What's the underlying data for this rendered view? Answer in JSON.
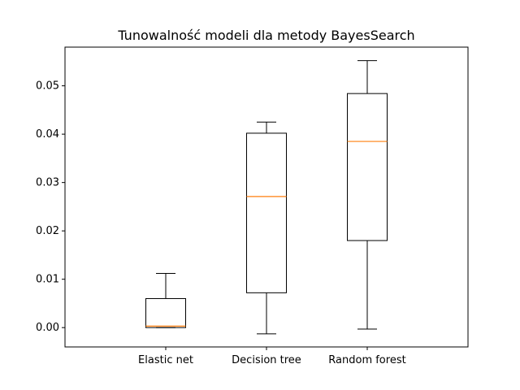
{
  "chart_data": {
    "type": "box",
    "title": "Tunowalność modeli dla metody BayesSearch",
    "xlabel": "",
    "ylabel": "",
    "categories": [
      "Elastic net",
      "Decision tree",
      "Random forest"
    ],
    "boxes": [
      {
        "name": "Elastic net",
        "whisker_low": 0.0,
        "q1": 0.0,
        "median": 0.0003,
        "q3": 0.006,
        "whisker_high": 0.0112
      },
      {
        "name": "Decision tree",
        "whisker_low": -0.0013,
        "q1": 0.0072,
        "median": 0.0271,
        "q3": 0.0402,
        "whisker_high": 0.0425
      },
      {
        "name": "Random forest",
        "whisker_low": -0.0003,
        "q1": 0.018,
        "median": 0.0385,
        "q3": 0.0484,
        "whisker_high": 0.0552
      }
    ],
    "ylim": [
      -0.004,
      0.058
    ],
    "yticks": [
      0.0,
      0.01,
      0.02,
      0.03,
      0.04,
      0.05
    ],
    "ytick_labels": [
      "0.00",
      "0.01",
      "0.02",
      "0.03",
      "0.04",
      "0.05"
    ],
    "grid": false,
    "colors": {
      "box": "#000000",
      "median": "#ff7f0e",
      "whisker": "#000000"
    }
  }
}
